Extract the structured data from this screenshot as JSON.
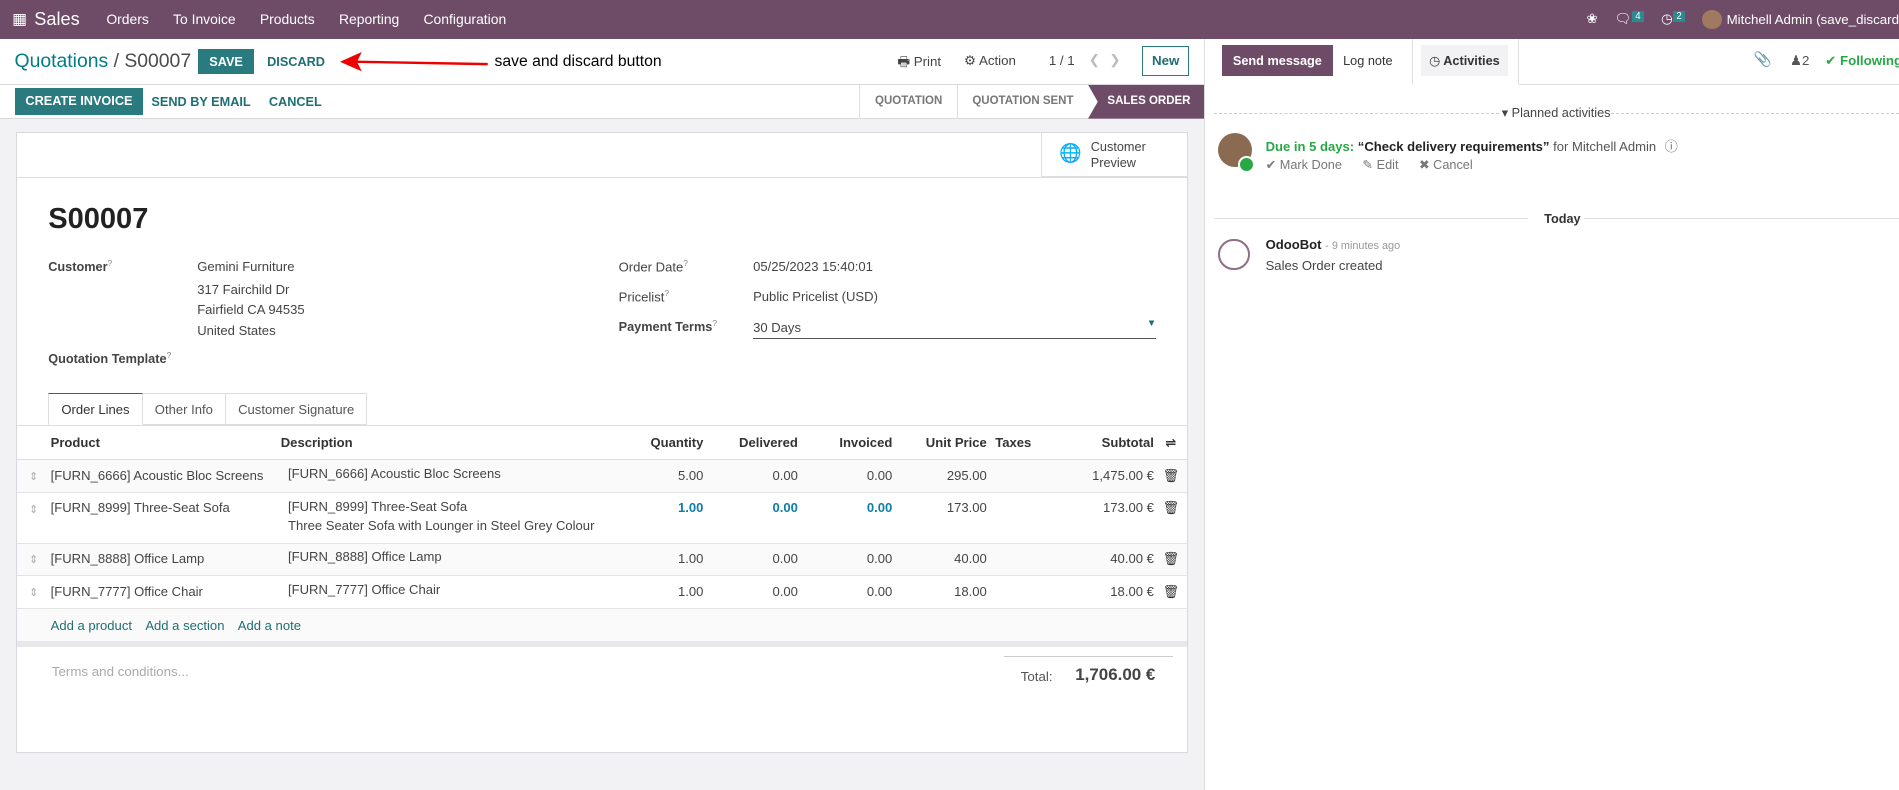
{
  "topbar": {
    "app": "Sales",
    "menus": [
      "Orders",
      "To Invoice",
      "Products",
      "Reporting",
      "Configuration"
    ],
    "messages_count": "4",
    "activities_count": "2",
    "user": "Mitchell Admin (save_discard"
  },
  "breadcrumb": {
    "parent": "Quotations",
    "separator": "/",
    "current": "S00007"
  },
  "buttons": {
    "save": "SAVE",
    "discard": "DISCARD",
    "print": "Print",
    "action": "Action",
    "pager": "1 / 1",
    "new": "New",
    "create_invoice": "CREATE INVOICE",
    "send_by_email": "SEND BY EMAIL",
    "cancel": "CANCEL"
  },
  "annotation": "save and discard button",
  "status_bar": [
    "QUOTATION",
    "QUOTATION SENT",
    "SALES ORDER"
  ],
  "status_active": "SALES ORDER",
  "customer_preview": {
    "line1": "Customer",
    "line2": "Preview"
  },
  "form": {
    "name": "S00007",
    "customer_label": "Customer",
    "customer_name": "Gemini Furniture",
    "customer_address": [
      "317 Fairchild Dr",
      "Fairfield CA 94535",
      "United States"
    ],
    "template_label": "Quotation Template",
    "order_date_label": "Order Date",
    "order_date": "05/25/2023 15:40:01",
    "pricelist_label": "Pricelist",
    "pricelist": "Public Pricelist (USD)",
    "payment_terms_label": "Payment Terms",
    "payment_terms": "30 Days",
    "help_mark": "?"
  },
  "tabs": [
    "Order Lines",
    "Other Info",
    "Customer Signature"
  ],
  "table": {
    "headers": [
      "Product",
      "Description",
      "Quantity",
      "Delivered",
      "Invoiced",
      "Unit Price",
      "Taxes",
      "Subtotal"
    ],
    "rows": [
      {
        "product": "[FURN_6666] Acoustic Bloc Screens",
        "description": "[FURN_6666] Acoustic Bloc Screens",
        "description2": "",
        "quantity": "5.00",
        "delivered": "0.00",
        "invoiced": "0.00",
        "unit_price": "295.00",
        "taxes": "",
        "subtotal": "1,475.00 €"
      },
      {
        "product": "[FURN_8999] Three-Seat Sofa",
        "description": "[FURN_8999] Three-Seat Sofa",
        "description2": "Three Seater Sofa with Lounger in Steel Grey Colour",
        "quantity": "1.00",
        "delivered": "0.00",
        "invoiced": "0.00",
        "unit_price": "173.00",
        "taxes": "",
        "subtotal": "173.00 €",
        "highlight": true
      },
      {
        "product": "[FURN_8888] Office Lamp",
        "description": "[FURN_8888] Office Lamp",
        "description2": "",
        "quantity": "1.00",
        "delivered": "0.00",
        "invoiced": "0.00",
        "unit_price": "40.00",
        "taxes": "",
        "subtotal": "40.00 €"
      },
      {
        "product": "[FURN_7777] Office Chair",
        "description": "[FURN_7777] Office Chair",
        "description2": "",
        "quantity": "1.00",
        "delivered": "0.00",
        "invoiced": "0.00",
        "unit_price": "18.00",
        "taxes": "",
        "subtotal": "18.00 €"
      }
    ],
    "add_links": [
      "Add a product",
      "Add a section",
      "Add a note"
    ]
  },
  "terms_placeholder": "Terms and conditions...",
  "total": {
    "label": "Total:",
    "value": "1,706.00 €"
  },
  "chatter": {
    "send_message": "Send message",
    "log_note": "Log note",
    "activities": "Activities",
    "followers_count": "2",
    "following": "Following",
    "planned_activities": "Planned activities",
    "activity": {
      "due": "Due in 5 days:",
      "title": "“Check delivery requirements”",
      "for": "for Mitchell Admin",
      "mark_done": "Mark Done",
      "edit": "Edit",
      "cancel": "Cancel"
    },
    "today": "Today",
    "message": {
      "author": "OdooBot",
      "time": "- 9 minutes ago",
      "body": "Sales Order created"
    }
  },
  "colors": {
    "brand": "#714B67",
    "primary": "#017E84",
    "success": "#28a745",
    "link_blue": "#0e7eab"
  }
}
